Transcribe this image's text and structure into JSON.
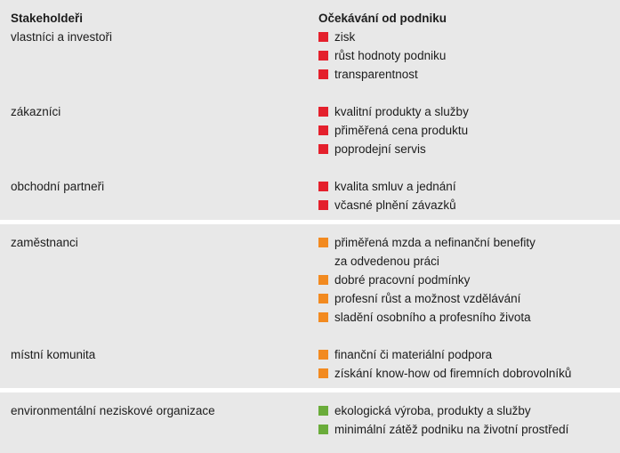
{
  "header": {
    "col1": "Stakeholdeři",
    "col2": "Očekávání od podniku"
  },
  "colors": {
    "red": "#e4202c",
    "orange": "#f28a20",
    "green": "#6aac3a",
    "section_background": "#e8e8e8"
  },
  "groups": [
    {
      "label": "vlastníci a investoři",
      "color": "red",
      "items": [
        {
          "lines": [
            "zisk"
          ]
        },
        {
          "lines": [
            "růst hodnoty podniku"
          ]
        },
        {
          "lines": [
            "transparentnost"
          ]
        }
      ]
    },
    {
      "label": "zákazníci",
      "color": "red",
      "items": [
        {
          "lines": [
            "kvalitní produkty a služby"
          ]
        },
        {
          "lines": [
            "přiměřená cena produktu"
          ]
        },
        {
          "lines": [
            "poprodejní servis"
          ]
        }
      ]
    },
    {
      "label": "obchodní partneři",
      "color": "red",
      "items": [
        {
          "lines": [
            "kvalita smluv a jednání"
          ]
        },
        {
          "lines": [
            "včasné plnění závazků"
          ]
        }
      ]
    },
    {
      "label": "zaměstnanci",
      "color": "orange",
      "items": [
        {
          "lines": [
            "přiměřená mzda a nefinanční benefity",
            "za odvedenou práci"
          ]
        },
        {
          "lines": [
            "dobré pracovní podmínky"
          ]
        },
        {
          "lines": [
            "profesní růst a možnost vzdělávání"
          ]
        },
        {
          "lines": [
            "sladění osobního a profesního života"
          ]
        }
      ]
    },
    {
      "label": "místní komunita",
      "color": "orange",
      "items": [
        {
          "lines": [
            "finanční či materiální podpora"
          ]
        },
        {
          "lines": [
            "získání know-how od firemních dobrovolníků"
          ]
        }
      ]
    },
    {
      "label": "environmentální neziskové organizace",
      "color": "green",
      "items": [
        {
          "lines": [
            "ekologická výroba, produkty a služby"
          ]
        },
        {
          "lines": [
            "minimální zátěž podniku na životní prostředí"
          ]
        }
      ]
    }
  ]
}
